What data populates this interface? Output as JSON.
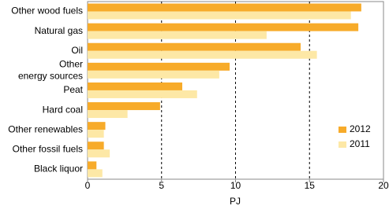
{
  "chart_data": {
    "type": "hbar",
    "categories": [
      "Other wood fuels",
      "Natural gas",
      "Oil",
      "Other\nenergy sources",
      "Peat",
      "Hard coal",
      "Other renewables",
      "Other fossil fuels",
      "Black liquor"
    ],
    "series": [
      {
        "name": "2012",
        "color": "#f7ab2a",
        "values": [
          18.5,
          18.3,
          14.4,
          9.6,
          6.4,
          4.9,
          1.2,
          1.1,
          0.6
        ]
      },
      {
        "name": "2011",
        "color": "#fde8a6",
        "values": [
          17.8,
          12.1,
          15.5,
          8.9,
          7.4,
          2.7,
          1.1,
          1.5,
          1.0
        ]
      }
    ],
    "xlabel": "PJ",
    "xlim": [
      0,
      20
    ],
    "xticks": [
      0,
      5,
      10,
      15,
      20
    ],
    "grid": true,
    "legend": "lower right"
  }
}
